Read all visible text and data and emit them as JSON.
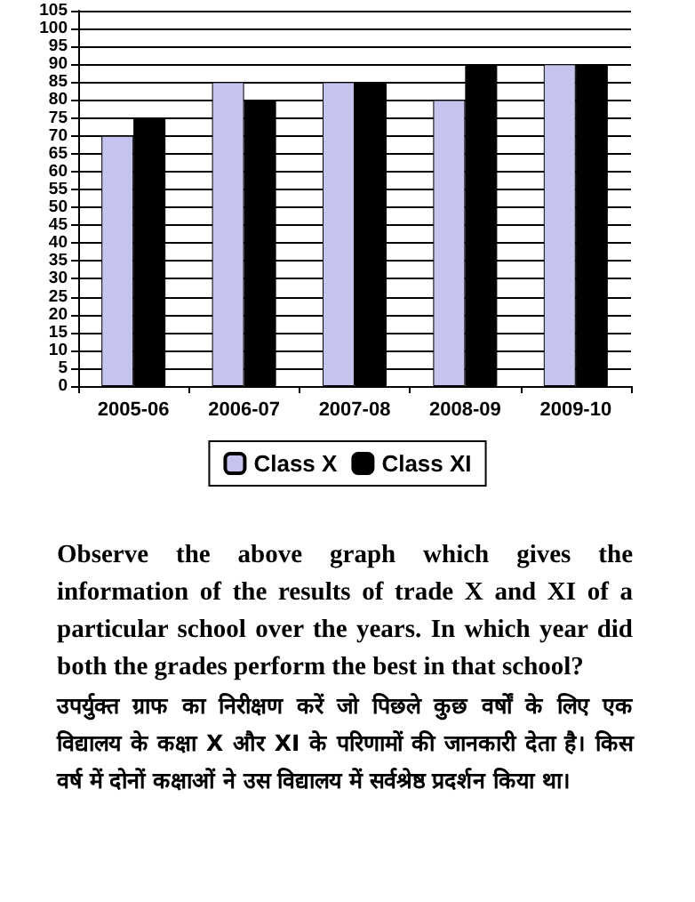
{
  "chart_data": {
    "type": "bar",
    "categories": [
      "2005-06",
      "2006-07",
      "2007-08",
      "2008-09",
      "2009-10"
    ],
    "series": [
      {
        "name": "Class X",
        "color": "#c4c4ee",
        "values": [
          70,
          85,
          85,
          80,
          90
        ]
      },
      {
        "name": "Class XI",
        "color": "#000000",
        "values": [
          75,
          80,
          85,
          90,
          90
        ]
      }
    ],
    "ylim": [
      0,
      105
    ],
    "yticks": [
      0,
      5,
      10,
      15,
      20,
      25,
      30,
      35,
      40,
      45,
      50,
      55,
      60,
      65,
      70,
      75,
      80,
      85,
      90,
      95,
      100,
      105
    ],
    "grid": "y",
    "legend": "bottom",
    "annotations": [
      "Observe the above graph which gives the information of the results of trade X and XI of a particular school over the years. In which year did both the grades perform the best in that school?",
      "उपर्युक्त ग्राफ का निरीक्षण करें जो पिछले कुछ वर्षों के लिए एक विद्यालय के कक्षा X और XI के परिणामों की जानकारी देता है। किस वर्ष में दोनों कक्षाओं ने उस विद्यालय में सर्वश्रेष्ठ प्रदर्शन किया था।"
    ]
  }
}
